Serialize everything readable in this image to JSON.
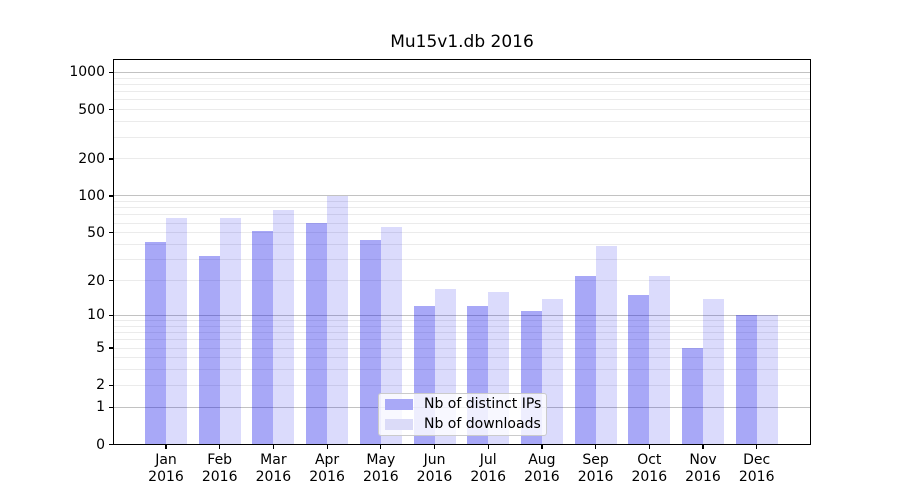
{
  "chart_data": {
    "type": "bar",
    "title": "Mu15v1.db 2016",
    "categories": [
      "Jan",
      "Feb",
      "Mar",
      "Apr",
      "May",
      "Jun",
      "Jul",
      "Aug",
      "Sep",
      "Oct",
      "Nov",
      "Dec"
    ],
    "x_tick_year": "2016",
    "series": [
      {
        "name": "Nb of distinct IPs",
        "color": "#a9a9f7",
        "fill_rgba": "rgba(0,0,232,0.34)",
        "values": [
          42,
          32,
          52,
          60,
          44,
          12,
          12,
          11,
          22,
          15,
          5,
          10
        ]
      },
      {
        "name": "Nb of downloads",
        "color": "#dbdbf8",
        "fill_rgba": "rgba(0,0,232,0.14)",
        "values": [
          66,
          66,
          77,
          100,
          56,
          17,
          16,
          14,
          39,
          22,
          14,
          10
        ]
      }
    ],
    "y_scale": "log10(value+1)",
    "y_ticks": [
      "1000",
      "500",
      "200",
      "100",
      "50",
      "20",
      "10",
      "5",
      "2",
      "1",
      "0"
    ],
    "ylim": [
      0,
      1270
    ],
    "grid": "horizontal",
    "legend_position": "lower-center",
    "colors": {
      "major_grid": "#c2c2c2",
      "minor_grid": "#ebebeb",
      "axis": "#000000",
      "background": "#ffffff"
    }
  }
}
